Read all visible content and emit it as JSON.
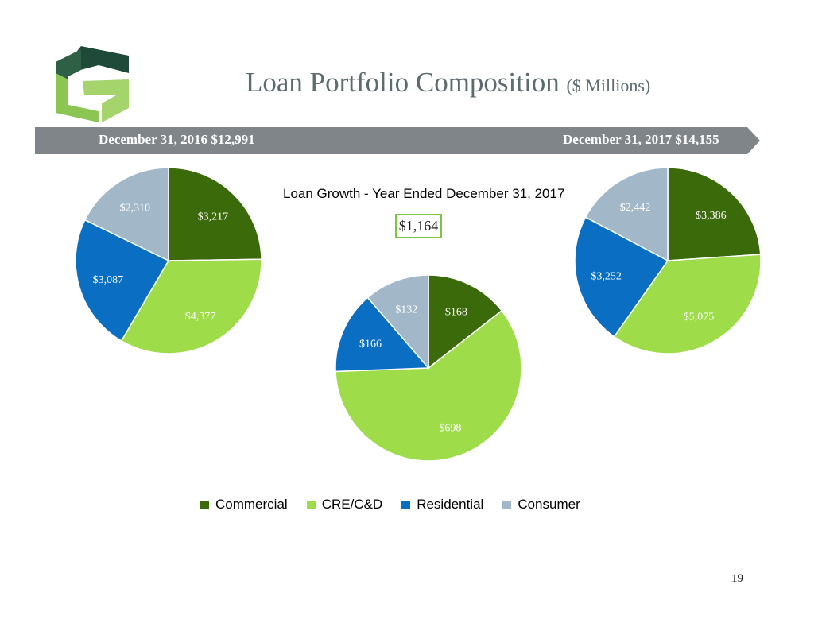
{
  "header": {
    "title": "Loan Portfolio Composition",
    "title_suffix": "($ Millions)",
    "logo_icon": "bank-logo-icon"
  },
  "banner": {
    "left": "December 31, 2016  $12,991",
    "right": "December 31, 2017  $14,155",
    "color": "#7f8588"
  },
  "growth": {
    "label": "Loan Growth -  Year Ended December 31, 2017",
    "value": "$1,164"
  },
  "colors": {
    "Commercial": "#3b6a0a",
    "CRE/C&D": "#9edc4a",
    "Residential": "#0a6fc2",
    "Consumer": "#a2b8c8"
  },
  "chart_data": [
    {
      "type": "pie",
      "title": "December 31, 2016  $12,991",
      "categories": [
        "Commercial",
        "CRE/C&D",
        "Residential",
        "Consumer"
      ],
      "values": [
        3217,
        4377,
        3087,
        2310
      ],
      "labels": [
        "$3,217",
        "$4,377",
        "$3,087",
        "$2,310"
      ]
    },
    {
      "type": "pie",
      "title": "Loan Growth -  Year Ended December 31, 2017",
      "categories": [
        "Commercial",
        "CRE/C&D",
        "Residential",
        "Consumer"
      ],
      "values": [
        168,
        698,
        166,
        132
      ],
      "labels": [
        "$168",
        "$698",
        "$166",
        "$132"
      ]
    },
    {
      "type": "pie",
      "title": "December 31, 2017  $14,155",
      "categories": [
        "Commercial",
        "CRE/C&D",
        "Residential",
        "Consumer"
      ],
      "values": [
        3386,
        5075,
        3252,
        2442
      ],
      "labels": [
        "$3,386",
        "$5,075",
        "$3,252",
        "$2,442"
      ]
    }
  ],
  "legend": {
    "items": [
      "Commercial",
      "CRE/C&D",
      "Residential",
      "Consumer"
    ]
  },
  "page_number": "19"
}
